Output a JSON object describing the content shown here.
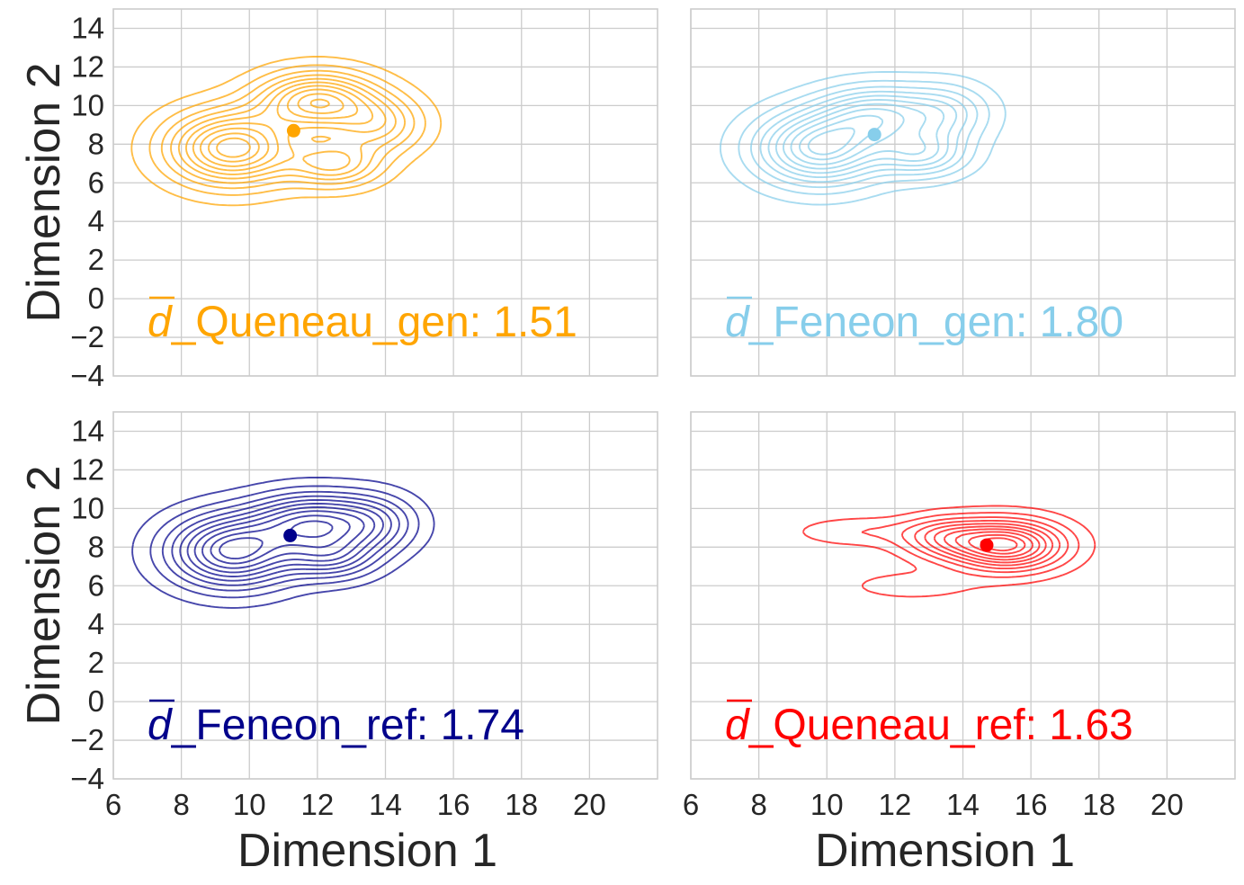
{
  "chart_data": [
    {
      "type": "contour",
      "panel": "top-left",
      "color": "#FFA500",
      "annotation": {
        "symbol": "d",
        "label": "_Queneau_gen: 1.51"
      },
      "centroid": {
        "x": 11.3,
        "y": 8.7
      },
      "xlabel": "",
      "ylabel": "Dimension 2",
      "xlim": [
        6,
        22
      ],
      "ylim": [
        -4,
        15
      ],
      "xticks": [
        "6",
        "8",
        "10",
        "12",
        "14",
        "16",
        "18",
        "20"
      ],
      "yticks": [
        "14",
        "12",
        "10",
        "8",
        "6",
        "4",
        "2",
        "0",
        "−2",
        "−4"
      ],
      "show_xticks": false,
      "show_yticks": true,
      "modes": [
        {
          "x": 9.5,
          "y": 7.8,
          "w": 1.0
        },
        {
          "x": 12.0,
          "y": 10.2,
          "w": 0.9
        },
        {
          "x": 12.5,
          "y": 7.0,
          "w": 0.55
        },
        {
          "x": 13.8,
          "y": 9.0,
          "w": 0.45
        }
      ],
      "grid": true
    },
    {
      "type": "contour",
      "panel": "top-right",
      "color": "#87CEEB",
      "annotation": {
        "symbol": "d",
        "label": "_Feneon_gen: 1.80"
      },
      "centroid": {
        "x": 11.4,
        "y": 8.5
      },
      "xlabel": "",
      "ylabel": "",
      "xlim": [
        6,
        22
      ],
      "ylim": [
        -4,
        15
      ],
      "xticks": [
        "6",
        "8",
        "10",
        "12",
        "14",
        "16",
        "18",
        "20"
      ],
      "yticks": [
        "14",
        "12",
        "10",
        "8",
        "6",
        "4",
        "2",
        "0",
        "−2",
        "−4"
      ],
      "show_xticks": false,
      "show_yticks": false,
      "modes": [
        {
          "x": 9.8,
          "y": 7.8,
          "w": 1.0
        },
        {
          "x": 11.5,
          "y": 9.5,
          "w": 0.7
        },
        {
          "x": 12.8,
          "y": 7.5,
          "w": 0.55
        },
        {
          "x": 13.5,
          "y": 9.6,
          "w": 0.4
        }
      ],
      "grid": true
    },
    {
      "type": "contour",
      "panel": "bottom-left",
      "color": "#00008B",
      "annotation": {
        "symbol": "d",
        "label": "_Feneon_ref: 1.74"
      },
      "centroid": {
        "x": 11.2,
        "y": 8.6
      },
      "xlabel": "Dimension 1",
      "ylabel": "Dimension 2",
      "xlim": [
        6,
        22
      ],
      "ylim": [
        -4,
        15
      ],
      "xticks": [
        "6",
        "8",
        "10",
        "12",
        "14",
        "16",
        "18",
        "20"
      ],
      "yticks": [
        "14",
        "12",
        "10",
        "8",
        "6",
        "4",
        "2",
        "0",
        "−2",
        "−4"
      ],
      "show_xticks": true,
      "show_yticks": true,
      "modes": [
        {
          "x": 9.5,
          "y": 7.8,
          "w": 1.0
        },
        {
          "x": 11.8,
          "y": 9.3,
          "w": 0.8
        },
        {
          "x": 12.4,
          "y": 7.5,
          "w": 0.5
        },
        {
          "x": 13.6,
          "y": 9.2,
          "w": 0.45
        }
      ],
      "grid": true
    },
    {
      "type": "contour",
      "panel": "bottom-right",
      "color": "#FF0000",
      "annotation": {
        "symbol": "d",
        "label": "_Queneau_ref: 1.63"
      },
      "centroid": {
        "x": 14.7,
        "y": 8.1
      },
      "xlabel": "Dimension 1",
      "ylabel": "",
      "xlim": [
        6,
        22
      ],
      "ylim": [
        -4,
        15
      ],
      "xticks": [
        "6",
        "8",
        "10",
        "12",
        "14",
        "16",
        "18",
        "20"
      ],
      "yticks": [
        "14",
        "12",
        "10",
        "8",
        "6",
        "4",
        "2",
        "0",
        "−2",
        "−4"
      ],
      "show_xticks": true,
      "show_yticks": false,
      "modes": [
        {
          "x": 15.3,
          "y": 8.1,
          "w": 1.0
        },
        {
          "x": 13.5,
          "y": 8.5,
          "w": 0.45
        },
        {
          "x": 11.0,
          "y": 8.8,
          "w": 0.15
        },
        {
          "x": 12.5,
          "y": 6.0,
          "w": 0.12
        }
      ],
      "grid": true
    }
  ]
}
